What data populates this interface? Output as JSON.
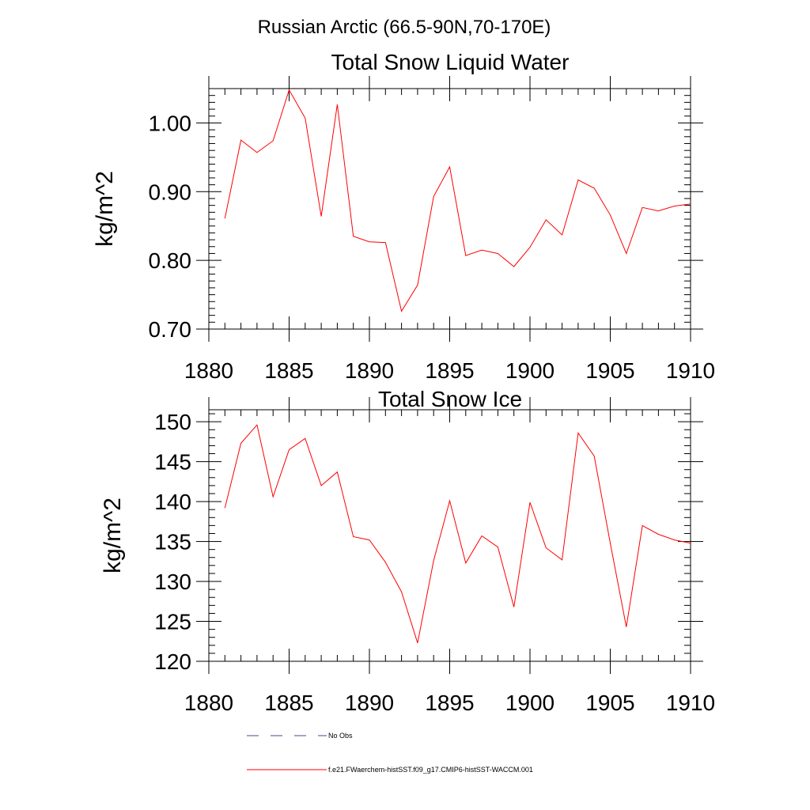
{
  "figure": {
    "suptitle": "Russian Arctic (66.5-90N,70-170E)",
    "legend": [
      {
        "label": "No Obs",
        "style": "dashed",
        "color": "#4a4a8a"
      },
      {
        "label": "f.e21.FWaerchem-histSST.f09_g17.CMIP6-histSST-WACCM.001",
        "style": "solid",
        "color": "#ff0000"
      }
    ]
  },
  "chart_data": [
    {
      "type": "line",
      "title": "Total Snow Liquid Water",
      "xlabel": "",
      "ylabel": "kg/m^2",
      "xlim": [
        1880,
        1910
      ],
      "ylim": [
        0.7,
        1.05
      ],
      "xticks": [
        1880,
        1885,
        1890,
        1895,
        1900,
        1905,
        1910
      ],
      "xtick_labels": [
        "1880",
        "1885",
        "1890",
        "1895",
        "1900",
        "1905",
        "1910"
      ],
      "yticks": [
        0.7,
        0.8,
        0.9,
        1.0
      ],
      "ytick_labels": [
        "0.70",
        "0.80",
        "0.90",
        "1.00"
      ],
      "x": [
        1881,
        1882,
        1883,
        1884,
        1885,
        1886,
        1887,
        1888,
        1889,
        1890,
        1891,
        1892,
        1893,
        1894,
        1895,
        1896,
        1897,
        1898,
        1899,
        1900,
        1901,
        1902,
        1903,
        1904,
        1905,
        1906,
        1907,
        1908,
        1909,
        1910
      ],
      "series": [
        {
          "name": "f.e21.FWaerchem-histSST.f09_g17.CMIP6-histSST-WACCM.001",
          "color": "#ff0000",
          "values": [
            0.861,
            0.975,
            0.957,
            0.974,
            1.048,
            1.007,
            0.864,
            1.027,
            0.835,
            0.827,
            0.826,
            0.726,
            0.764,
            0.893,
            0.936,
            0.807,
            0.815,
            0.81,
            0.791,
            0.819,
            0.859,
            0.837,
            0.917,
            0.905,
            0.866,
            0.81,
            0.877,
            0.872,
            0.879,
            0.882
          ]
        }
      ]
    },
    {
      "type": "line",
      "title": "Total Snow Ice",
      "xlabel": "",
      "ylabel": "kg/m^2",
      "xlim": [
        1880,
        1910
      ],
      "ylim": [
        120,
        151.5
      ],
      "xticks": [
        1880,
        1885,
        1890,
        1895,
        1900,
        1905,
        1910
      ],
      "xtick_labels": [
        "1880",
        "1885",
        "1890",
        "1895",
        "1900",
        "1905",
        "1910"
      ],
      "yticks": [
        120,
        125,
        130,
        135,
        140,
        145,
        150
      ],
      "ytick_labels": [
        "120",
        "125",
        "130",
        "135",
        "140",
        "145",
        "150"
      ],
      "x": [
        1881,
        1882,
        1883,
        1884,
        1885,
        1886,
        1887,
        1888,
        1889,
        1890,
        1891,
        1892,
        1893,
        1894,
        1895,
        1896,
        1897,
        1898,
        1899,
        1900,
        1901,
        1902,
        1903,
        1904,
        1905,
        1906,
        1907,
        1908,
        1909,
        1910
      ],
      "series": [
        {
          "name": "f.e21.FWaerchem-histSST.f09_g17.CMIP6-histSST-WACCM.001",
          "color": "#ff0000",
          "values": [
            139.2,
            147.3,
            149.6,
            140.6,
            146.5,
            147.9,
            142.0,
            143.7,
            135.6,
            135.2,
            132.4,
            128.7,
            122.3,
            132.6,
            140.1,
            132.3,
            135.7,
            134.3,
            126.8,
            139.9,
            134.2,
            132.7,
            148.6,
            145.7,
            134.8,
            124.3,
            137.0,
            135.9,
            135.2,
            134.8
          ]
        }
      ]
    }
  ]
}
